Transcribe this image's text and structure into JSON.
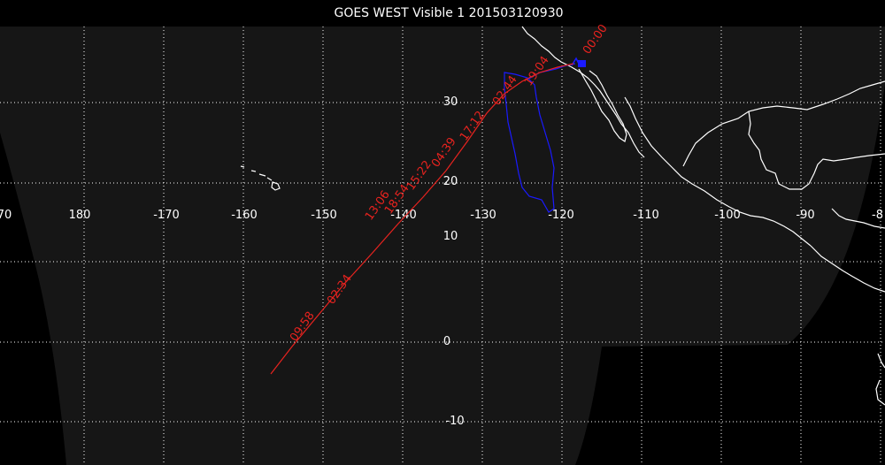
{
  "title": "GOES WEST Visible 1 201503120930",
  "colors": {
    "background": "#000000",
    "disk": "#161616",
    "grid": "#ffffff",
    "coast": "#ffffff",
    "trajectory": "#e8231f",
    "plume": "#1a1aff"
  },
  "map": {
    "longitude_labels": [
      "70",
      "180",
      "-170",
      "-160",
      "-150",
      "-140",
      "-130",
      "-120",
      "-110",
      "-100",
      "-90",
      "-8"
    ],
    "latitude_labels": [
      "30",
      "20",
      "10",
      "0",
      "-10"
    ]
  },
  "trajectory": {
    "time_labels": [
      "09:58",
      "02:34",
      "13:06",
      "18:54",
      "04:39",
      "15:22",
      "17:12",
      "02:44",
      "19:04",
      "00:00"
    ]
  },
  "markers": {
    "source": "source-marker"
  }
}
